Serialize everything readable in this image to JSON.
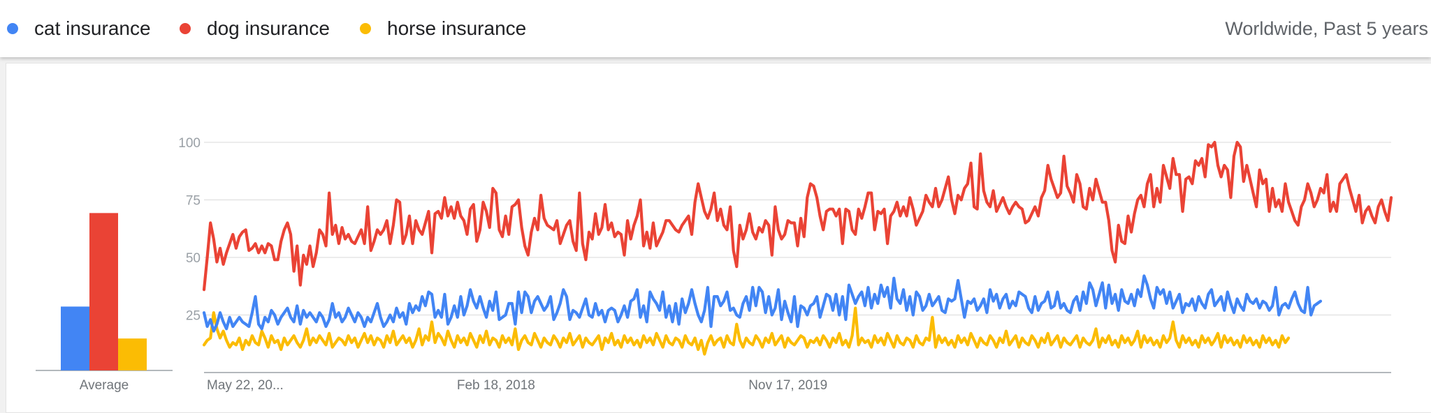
{
  "legend": {
    "items": [
      {
        "label": "cat insurance",
        "color": "#4285f4"
      },
      {
        "label": "dog insurance",
        "color": "#ea4335"
      },
      {
        "label": "horse insurance",
        "color": "#fbbc04"
      }
    ],
    "region_time": "Worldwide, Past 5 years"
  },
  "chart_data": [
    {
      "type": "bar",
      "xlabel": "Average",
      "categories": [
        "cat insurance",
        "dog insurance",
        "horse insurance"
      ],
      "values": [
        28,
        69,
        14
      ],
      "colors": [
        "#4285f4",
        "#ea4335",
        "#fbbc04"
      ],
      "ylim": [
        0,
        100
      ]
    },
    {
      "type": "line",
      "grid": true,
      "ylim": [
        0,
        100
      ],
      "y_ticks": [
        25,
        50,
        75,
        100
      ],
      "x_ticks": [
        {
          "label": "May 22, 20...",
          "week_index": 0
        },
        {
          "label": "Feb 18, 2018",
          "week_index": 91
        },
        {
          "label": "Nov 17, 2019",
          "week_index": 182
        }
      ],
      "x_range": [
        "2016-05-22",
        "2021-05-09"
      ],
      "x_unit": "weekly",
      "series": [
        {
          "name": "dog insurance",
          "color": "#ea4335",
          "values": [
            36,
            50,
            65,
            58,
            48,
            54,
            47,
            52,
            56,
            60,
            54,
            59,
            61,
            62,
            53,
            54,
            56,
            52,
            55,
            52,
            56,
            55,
            49,
            49,
            57,
            62,
            65,
            60,
            44,
            55,
            38,
            51,
            47,
            55,
            46,
            52,
            62,
            60,
            55,
            78,
            60,
            64,
            56,
            63,
            58,
            60,
            57,
            56,
            59,
            62,
            56,
            72,
            53,
            57,
            62,
            60,
            62,
            66,
            56,
            64,
            75,
            74,
            56,
            60,
            68,
            56,
            66,
            62,
            60,
            65,
            70,
            52,
            69,
            70,
            67,
            76,
            68,
            72,
            67,
            74,
            68,
            66,
            60,
            71,
            73,
            57,
            62,
            74,
            70,
            63,
            80,
            78,
            62,
            59,
            68,
            60,
            72,
            73,
            75,
            63,
            55,
            51,
            61,
            67,
            62,
            77,
            67,
            64,
            63,
            62,
            66,
            56,
            60,
            64,
            66,
            57,
            53,
            78,
            56,
            49,
            61,
            58,
            69,
            60,
            63,
            73,
            62,
            65,
            59,
            61,
            60,
            51,
            66,
            58,
            64,
            68,
            75,
            55,
            61,
            54,
            65,
            55,
            58,
            61,
            66,
            66,
            64,
            62,
            61,
            64,
            66,
            68,
            60,
            74,
            82,
            76,
            70,
            67,
            71,
            78,
            66,
            71,
            64,
            62,
            72,
            53,
            46,
            64,
            58,
            62,
            69,
            61,
            58,
            63,
            61,
            66,
            64,
            51,
            72,
            62,
            58,
            60,
            66,
            65,
            65,
            55,
            67,
            59,
            76,
            82,
            81,
            76,
            68,
            62,
            70,
            71,
            71,
            68,
            71,
            56,
            71,
            70,
            62,
            60,
            71,
            67,
            72,
            78,
            78,
            62,
            70,
            69,
            71,
            56,
            68,
            70,
            74,
            68,
            72,
            68,
            76,
            71,
            64,
            67,
            70,
            77,
            74,
            72,
            80,
            72,
            75,
            80,
            85,
            75,
            69,
            77,
            75,
            80,
            82,
            91,
            72,
            71,
            95,
            79,
            74,
            72,
            79,
            70,
            73,
            76,
            72,
            69,
            72,
            74,
            72,
            71,
            65,
            66,
            69,
            72,
            68,
            76,
            79,
            90,
            84,
            80,
            76,
            78,
            94,
            81,
            78,
            74,
            86,
            82,
            72,
            71,
            80,
            75,
            84,
            79,
            74,
            74,
            66,
            53,
            48,
            64,
            57,
            56,
            68,
            61,
            69,
            75,
            77,
            72,
            82,
            86,
            72,
            80,
            74,
            90,
            85,
            80,
            93,
            86,
            86,
            70,
            84,
            85,
            82,
            92,
            90,
            93,
            85,
            99,
            98,
            100,
            90,
            85,
            90,
            88,
            76,
            94,
            100,
            98,
            83,
            90,
            84,
            78,
            72,
            88,
            82,
            84,
            70,
            80,
            72,
            75,
            70,
            82,
            74,
            70,
            66,
            64,
            72,
            75,
            82,
            78,
            72,
            75,
            80,
            78,
            86,
            70,
            74,
            70,
            82,
            84,
            86,
            80,
            75,
            70,
            77,
            65,
            70,
            72,
            68,
            65,
            72,
            75,
            70,
            66,
            76
          ]
        },
        {
          "name": "cat insurance",
          "color": "#4285f4",
          "values": [
            26,
            20,
            23,
            18,
            21,
            26,
            22,
            19,
            24,
            20,
            22,
            24,
            22,
            21,
            20,
            26,
            33,
            21,
            19,
            24,
            22,
            27,
            25,
            21,
            24,
            26,
            28,
            24,
            22,
            29,
            21,
            27,
            24,
            26,
            24,
            22,
            26,
            24,
            20,
            23,
            30,
            24,
            26,
            22,
            24,
            28,
            25,
            22,
            26,
            24,
            20,
            24,
            22,
            26,
            30,
            24,
            20,
            22,
            25,
            22,
            28,
            24,
            26,
            21,
            30,
            26,
            29,
            27,
            33,
            29,
            35,
            34,
            24,
            27,
            24,
            34,
            21,
            24,
            29,
            24,
            33,
            25,
            29,
            36,
            31,
            28,
            33,
            28,
            24,
            31,
            27,
            35,
            23,
            24,
            25,
            30,
            30,
            21,
            35,
            26,
            35,
            33,
            26,
            31,
            33,
            30,
            27,
            29,
            33,
            23,
            26,
            30,
            36,
            33,
            23,
            27,
            26,
            24,
            28,
            32,
            25,
            24,
            30,
            25,
            27,
            22,
            27,
            28,
            27,
            22,
            25,
            29,
            24,
            31,
            32,
            36,
            24,
            29,
            22,
            35,
            32,
            30,
            27,
            35,
            24,
            29,
            22,
            30,
            21,
            32,
            26,
            30,
            36,
            30,
            25,
            22,
            27,
            37,
            20,
            33,
            33,
            29,
            31,
            35,
            27,
            28,
            25,
            24,
            30,
            33,
            27,
            37,
            29,
            37,
            35,
            26,
            33,
            25,
            28,
            36,
            23,
            31,
            26,
            22,
            33,
            20,
            29,
            28,
            25,
            29,
            30,
            33,
            24,
            29,
            34,
            33,
            27,
            34,
            25,
            33,
            23,
            38,
            34,
            30,
            33,
            35,
            29,
            37,
            28,
            34,
            30,
            38,
            33,
            37,
            28,
            41,
            32,
            30,
            36,
            27,
            33,
            25,
            35,
            33,
            27,
            29,
            34,
            29,
            31,
            33,
            27,
            26,
            32,
            31,
            32,
            40,
            32,
            24,
            31,
            30,
            32,
            27,
            29,
            32,
            26,
            36,
            31,
            34,
            28,
            32,
            34,
            28,
            31,
            29,
            35,
            34,
            33,
            28,
            26,
            33,
            27,
            30,
            31,
            35,
            28,
            29,
            35,
            28,
            30,
            27,
            26,
            31,
            33,
            27,
            35,
            30,
            39,
            36,
            29,
            34,
            39,
            28,
            38,
            30,
            34,
            27,
            36,
            31,
            30,
            34,
            29,
            36,
            33,
            42,
            38,
            32,
            28,
            37,
            34,
            36,
            30,
            35,
            28,
            31,
            34,
            26,
            30,
            29,
            32,
            27,
            33,
            30,
            28,
            34,
            36,
            29,
            31,
            33,
            27,
            35,
            30,
            26,
            32,
            29,
            27,
            34,
            31,
            30,
            32,
            28,
            31,
            30,
            27,
            29,
            37,
            25,
            29,
            30,
            28,
            32,
            35,
            30,
            27,
            26,
            37,
            25,
            29,
            30,
            31
          ]
        },
        {
          "name": "horse insurance",
          "color": "#fbbc04",
          "values": [
            12,
            14,
            15,
            26,
            19,
            15,
            18,
            14,
            11,
            13,
            12,
            15,
            10,
            14,
            12,
            16,
            13,
            12,
            18,
            15,
            11,
            16,
            13,
            14,
            10,
            15,
            12,
            14,
            16,
            13,
            11,
            14,
            19,
            12,
            15,
            13,
            16,
            14,
            12,
            17,
            11,
            13,
            15,
            14,
            12,
            16,
            13,
            15,
            11,
            14,
            17,
            13,
            16,
            12,
            15,
            14,
            11,
            16,
            13,
            18,
            12,
            14,
            16,
            13,
            15,
            11,
            14,
            19,
            12,
            16,
            14,
            22,
            13,
            17,
            15,
            12,
            18,
            14,
            11,
            16,
            13,
            15,
            12,
            17,
            14,
            11,
            16,
            13,
            18,
            12,
            15,
            14,
            11,
            16,
            13,
            15,
            12,
            19,
            10,
            14,
            16,
            13,
            12,
            17,
            14,
            11,
            15,
            13,
            12,
            16,
            14,
            11,
            15,
            13,
            17,
            12,
            14,
            16,
            11,
            15,
            13,
            12,
            14,
            16,
            10,
            15,
            13,
            17,
            12,
            14,
            11,
            16,
            13,
            15,
            12,
            14,
            11,
            16,
            13,
            15,
            12,
            17,
            14,
            11,
            16,
            13,
            12,
            15,
            14,
            11,
            16,
            13,
            12,
            15,
            10,
            14,
            8,
            13,
            16,
            12,
            14,
            15,
            11,
            16,
            13,
            12,
            21,
            14,
            11,
            15,
            13,
            12,
            16,
            14,
            11,
            15,
            13,
            17,
            12,
            14,
            16,
            11,
            15,
            13,
            12,
            14,
            16,
            15,
            11,
            14,
            13,
            15,
            12,
            16,
            14,
            11,
            15,
            13,
            17,
            12,
            14,
            11,
            16,
            28,
            12,
            15,
            13,
            14,
            11,
            16,
            13,
            15,
            12,
            17,
            14,
            11,
            16,
            13,
            12,
            15,
            14,
            11,
            16,
            13,
            12,
            15,
            14,
            24,
            11,
            16,
            13,
            15,
            12,
            14,
            11,
            16,
            13,
            15,
            12,
            17,
            14,
            11,
            15,
            13,
            12,
            16,
            14,
            11,
            15,
            13,
            18,
            12,
            14,
            16,
            11,
            15,
            13,
            12,
            16,
            14,
            11,
            15,
            13,
            17,
            12,
            14,
            16,
            11,
            15,
            13,
            12,
            14,
            16,
            11,
            15,
            13,
            12,
            14,
            19,
            11,
            15,
            13,
            16,
            12,
            14,
            11,
            16,
            13,
            15,
            12,
            14,
            18,
            11,
            16,
            13,
            15,
            12,
            14,
            11,
            16,
            13,
            15,
            22,
            14,
            11,
            16,
            13,
            15,
            12,
            14,
            11,
            16,
            13,
            15,
            12,
            14,
            17,
            11,
            16,
            13,
            15,
            12,
            14,
            11,
            16,
            13,
            15,
            12,
            14,
            11,
            16,
            13,
            15,
            12,
            14,
            11,
            16,
            13,
            15
          ]
        }
      ]
    }
  ]
}
